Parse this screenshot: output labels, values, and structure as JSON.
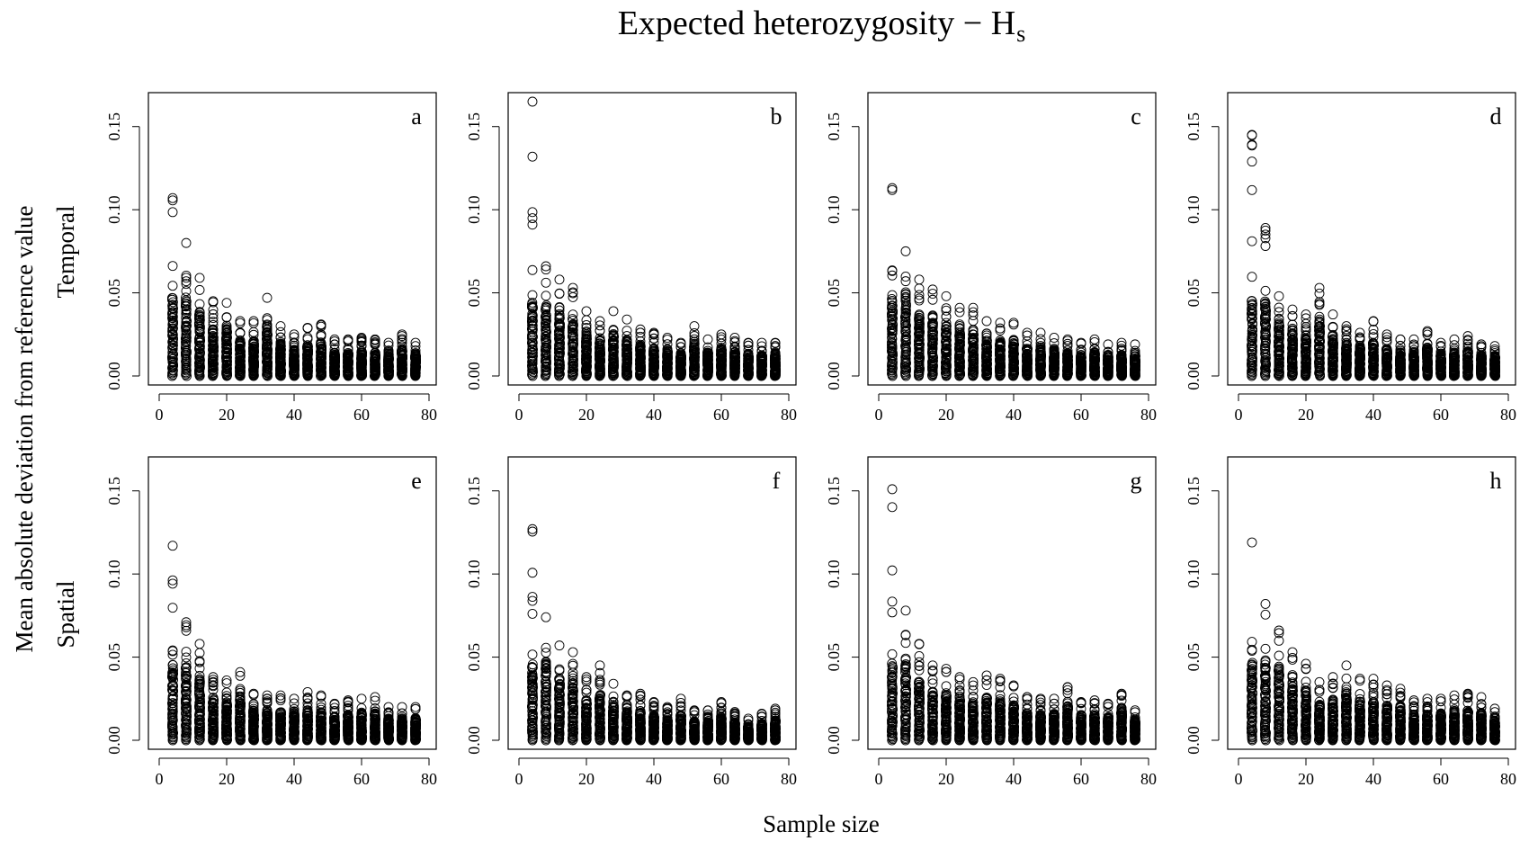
{
  "chart_data": {
    "type": "scatter",
    "title": "Expected heterozygosity − H",
    "title_subscript": "s",
    "xlabel": "Sample size",
    "ylabel": "Mean absolute deviation from reference value",
    "row_labels": [
      "Temporal",
      "Spatial"
    ],
    "grid": false,
    "legend": "none",
    "marker": "open-circle",
    "xlim": [
      0,
      80
    ],
    "ylim": [
      0,
      0.165
    ],
    "x_ticks": [
      0,
      20,
      40,
      60,
      80
    ],
    "y_ticks": [
      0.0,
      0.05,
      0.1,
      0.15
    ],
    "x_tick_labels": [
      "0",
      "20",
      "40",
      "60",
      "80"
    ],
    "y_tick_labels": [
      "0.00",
      "0.05",
      "0.10",
      "0.15"
    ],
    "sample_sizes": [
      4,
      8,
      12,
      16,
      20,
      24,
      28,
      32,
      36,
      40,
      44,
      48,
      52,
      56,
      60,
      64,
      68,
      72,
      76
    ],
    "panels": [
      {
        "letter": "a",
        "row": "Temporal",
        "max_deviation": [
          0.107,
          0.08,
          0.059,
          0.045,
          0.044,
          0.033,
          0.033,
          0.047,
          0.03,
          0.025,
          0.029,
          0.031,
          0.022,
          0.022,
          0.023,
          0.022,
          0.02,
          0.025,
          0.02
        ]
      },
      {
        "letter": "b",
        "row": "Temporal",
        "max_deviation": [
          0.165,
          0.066,
          0.058,
          0.053,
          0.039,
          0.033,
          0.039,
          0.034,
          0.028,
          0.026,
          0.023,
          0.02,
          0.03,
          0.022,
          0.025,
          0.023,
          0.02,
          0.02,
          0.02
        ]
      },
      {
        "letter": "c",
        "row": "Temporal",
        "max_deviation": [
          0.113,
          0.075,
          0.058,
          0.052,
          0.048,
          0.041,
          0.041,
          0.033,
          0.032,
          0.032,
          0.026,
          0.026,
          0.023,
          0.022,
          0.02,
          0.022,
          0.019,
          0.02,
          0.019
        ]
      },
      {
        "letter": "d",
        "row": "Temporal",
        "max_deviation": [
          0.145,
          0.089,
          0.048,
          0.04,
          0.037,
          0.053,
          0.037,
          0.03,
          0.026,
          0.033,
          0.025,
          0.022,
          0.022,
          0.027,
          0.02,
          0.022,
          0.024,
          0.019,
          0.018
        ]
      },
      {
        "letter": "e",
        "row": "Spatial",
        "max_deviation": [
          0.117,
          0.071,
          0.058,
          0.038,
          0.036,
          0.041,
          0.028,
          0.027,
          0.027,
          0.025,
          0.029,
          0.027,
          0.022,
          0.024,
          0.025,
          0.026,
          0.02,
          0.02,
          0.02
        ]
      },
      {
        "letter": "f",
        "row": "Spatial",
        "max_deviation": [
          0.127,
          0.074,
          0.057,
          0.053,
          0.038,
          0.045,
          0.034,
          0.027,
          0.028,
          0.023,
          0.02,
          0.025,
          0.018,
          0.018,
          0.023,
          0.017,
          0.013,
          0.016,
          0.019
        ]
      },
      {
        "letter": "g",
        "row": "Spatial",
        "max_deviation": [
          0.151,
          0.078,
          0.058,
          0.045,
          0.043,
          0.038,
          0.035,
          0.039,
          0.037,
          0.033,
          0.026,
          0.025,
          0.025,
          0.032,
          0.023,
          0.024,
          0.022,
          0.028,
          0.018
        ]
      },
      {
        "letter": "h",
        "row": "Spatial",
        "max_deviation": [
          0.119,
          0.082,
          0.066,
          0.053,
          0.046,
          0.035,
          0.038,
          0.045,
          0.037,
          0.037,
          0.033,
          0.031,
          0.024,
          0.025,
          0.025,
          0.027,
          0.028,
          0.026,
          0.019
        ]
      }
    ]
  }
}
